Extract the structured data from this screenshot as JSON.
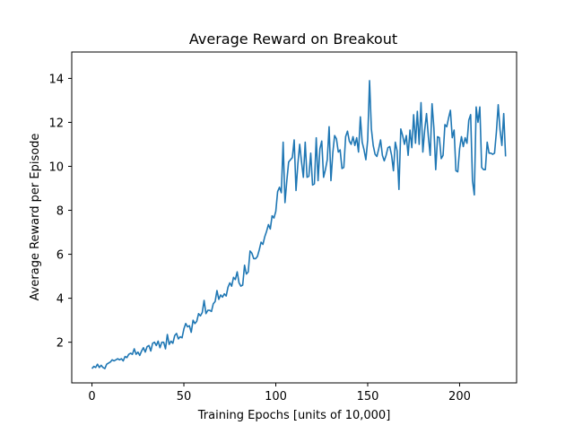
{
  "chart_data": {
    "type": "line",
    "title": "Average Reward on Breakout",
    "xlabel": "Training Epochs [units of 10,000]",
    "ylabel": "Average Reward per Episode",
    "xlim": [
      -11,
      231
    ],
    "ylim": [
      0.15,
      15.2
    ],
    "xticks": [
      0,
      50,
      100,
      150,
      200
    ],
    "yticks": [
      2,
      4,
      6,
      8,
      10,
      12,
      14
    ],
    "grid": false,
    "line_color": "#1f77b4",
    "series": [
      {
        "name": "Average Reward",
        "y": [
          0.8,
          0.9,
          0.85,
          1.0,
          0.85,
          0.95,
          0.85,
          0.8,
          1.0,
          1.05,
          1.1,
          1.2,
          1.15,
          1.2,
          1.25,
          1.2,
          1.25,
          1.15,
          1.35,
          1.3,
          1.45,
          1.5,
          1.45,
          1.7,
          1.45,
          1.55,
          1.4,
          1.6,
          1.75,
          1.55,
          1.8,
          1.85,
          1.6,
          1.95,
          2.0,
          1.85,
          2.05,
          1.75,
          2.0,
          2.0,
          1.7,
          2.35,
          1.9,
          2.05,
          1.95,
          2.3,
          2.4,
          2.15,
          2.25,
          2.2,
          2.6,
          2.85,
          2.7,
          2.75,
          2.45,
          3.0,
          2.85,
          2.95,
          3.3,
          3.2,
          3.35,
          3.9,
          3.3,
          3.45,
          3.45,
          3.4,
          3.75,
          3.85,
          4.35,
          3.95,
          4.15,
          4.05,
          4.2,
          4.1,
          4.5,
          4.7,
          4.55,
          4.95,
          4.85,
          5.2,
          4.7,
          4.55,
          4.6,
          5.5,
          5.1,
          5.2,
          6.15,
          6.05,
          5.8,
          5.8,
          5.9,
          6.2,
          6.55,
          6.45,
          6.8,
          7.05,
          7.35,
          7.15,
          7.75,
          7.65,
          7.95,
          8.85,
          9.05,
          8.8,
          11.1,
          8.35,
          9.35,
          10.2,
          10.3,
          10.4,
          11.2,
          8.9,
          10.1,
          11.0,
          10.2,
          9.5,
          11.1,
          9.5,
          9.55,
          10.6,
          9.15,
          9.2,
          11.3,
          9.35,
          10.8,
          11.15,
          9.5,
          9.85,
          10.3,
          11.8,
          9.35,
          10.6,
          11.4,
          11.25,
          10.65,
          10.75,
          9.9,
          9.95,
          11.35,
          11.6,
          11.15,
          11.0,
          11.35,
          10.95,
          11.3,
          10.65,
          12.25,
          11.1,
          10.75,
          10.3,
          11.2,
          13.9,
          11.7,
          10.95,
          10.55,
          10.45,
          10.8,
          11.2,
          10.5,
          10.25,
          10.5,
          10.85,
          10.9,
          10.5,
          9.8,
          11.1,
          10.7,
          8.95,
          11.7,
          11.4,
          11.0,
          11.4,
          10.5,
          11.65,
          10.85,
          12.35,
          11.05,
          12.5,
          11.0,
          12.9,
          10.65,
          11.65,
          12.4,
          11.35,
          10.5,
          12.85,
          11.75,
          9.85,
          11.35,
          11.3,
          10.35,
          10.5,
          11.9,
          11.8,
          12.2,
          12.55,
          11.3,
          11.65,
          9.8,
          9.75,
          10.8,
          11.35,
          10.9,
          11.3,
          11.05,
          12.1,
          12.35,
          9.35,
          8.7,
          12.7,
          12.0,
          12.7,
          9.95,
          9.85,
          9.85,
          11.1,
          10.6,
          10.6,
          10.55,
          10.6,
          11.55,
          12.8,
          11.65,
          10.95,
          12.4,
          10.45
        ]
      }
    ]
  }
}
